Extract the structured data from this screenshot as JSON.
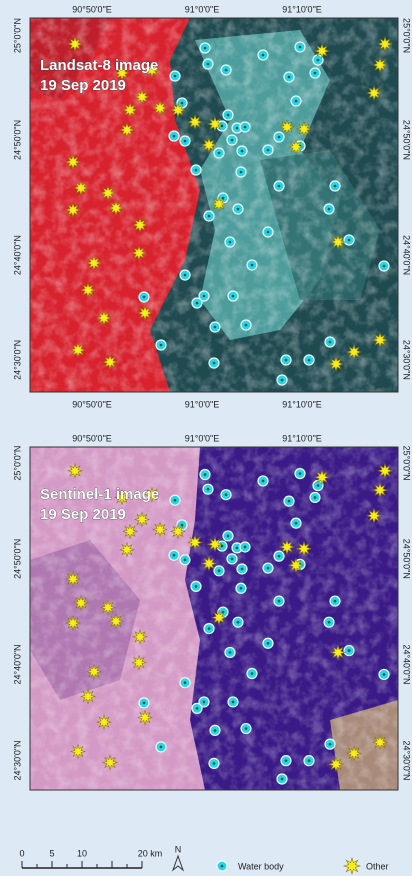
{
  "panels": [
    {
      "label_lines": [
        "Landsat-8 image",
        "19 Sep 2019"
      ],
      "top_ticks": [
        "90°50'0\"E",
        "91°0'0\"E",
        "91°10'0\"E"
      ],
      "bottom_ticks": [
        "90°50'0\"E",
        "91°0'0\"E",
        "91°10'0\"E"
      ],
      "left_ticks": [
        "25°0'0\"N",
        "24°50'0\"N",
        "24°40'0\"N",
        "24°30'0\"N"
      ],
      "right_ticks": [
        "25°0'0\"N",
        "24°50'0\"N",
        "24°40'0\"N",
        "24°30'0\"N"
      ]
    },
    {
      "label_lines": [
        "Sentinel-1 image",
        "19 Sep 2019"
      ],
      "top_ticks": [
        "90°50'0\"E",
        "91°0'0\"E",
        "91°10'0\"E"
      ],
      "left_ticks": [
        "25°0'0\"N",
        "24°50'0\"N",
        "24°40'0\"N",
        "24°30'0\"N"
      ],
      "right_ticks": [
        "25°0'0\"N",
        "24°50'0\"N",
        "24°40'0\"N",
        "24°30'0\"N"
      ]
    }
  ],
  "scale_bar": {
    "labels": [
      "0",
      "5",
      "10",
      "20 km"
    ]
  },
  "north": "N",
  "legend": [
    {
      "label": "Water body"
    },
    {
      "label": "Other"
    }
  ]
}
